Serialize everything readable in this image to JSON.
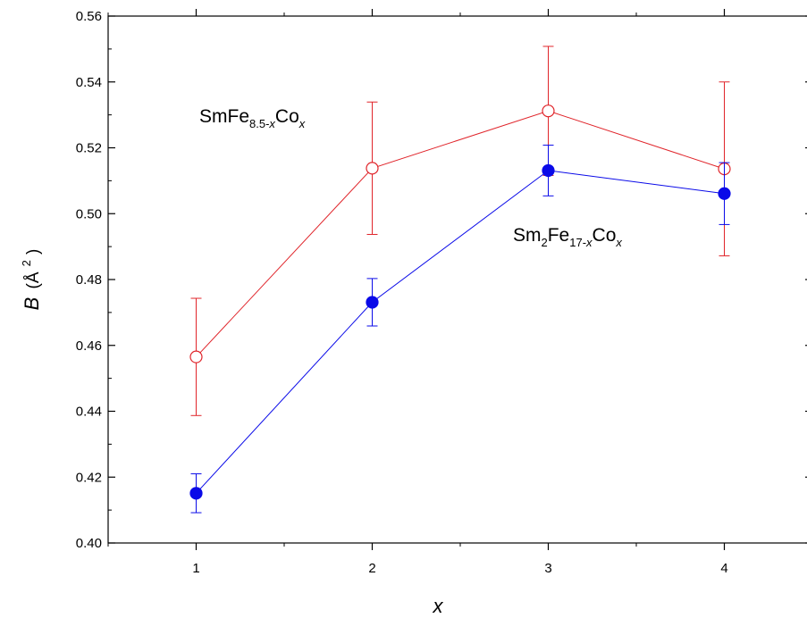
{
  "chart_data": {
    "type": "scatter",
    "xlabel": "x",
    "ylabel": {
      "main": "B",
      "unit": "(Å",
      "sup": "2",
      "close": ")"
    },
    "xlim": [
      0.5,
      4.5
    ],
    "ylim": [
      0.4,
      0.56
    ],
    "x_ticks": [
      1,
      2,
      3,
      4
    ],
    "y_ticks": [
      0.4,
      0.42,
      0.44,
      0.46,
      0.48,
      0.5,
      0.52,
      0.54,
      0.56
    ],
    "grid": false,
    "series": [
      {
        "color": "#e0242a",
        "marker": "open-circle",
        "x": [
          1,
          2,
          3,
          4
        ],
        "y": [
          0.4565,
          0.5138,
          0.5312,
          0.5136
        ],
        "error": [
          0.0178,
          0.0201,
          0.0196,
          0.0264
        ]
      },
      {
        "color": "#0a0ae8",
        "marker": "filled-circle",
        "x": [
          1,
          2,
          3,
          4
        ],
        "y": [
          0.4151,
          0.4731,
          0.5131,
          0.5061
        ],
        "error": [
          0.0059,
          0.0072,
          0.0077,
          0.0094
        ]
      }
    ],
    "annotations": [
      {
        "parts": [
          {
            "t": "SmFe",
            "k": "n"
          },
          {
            "t": "8.5-",
            "k": "sub"
          },
          {
            "t": "x",
            "k": "sub-i"
          },
          {
            "t": "Co",
            "k": "n"
          },
          {
            "t": "x",
            "k": "sub-i"
          }
        ]
      },
      {
        "parts": [
          {
            "t": "Sm",
            "k": "n"
          },
          {
            "t": "2",
            "k": "sub"
          },
          {
            "t": "Fe",
            "k": "n"
          },
          {
            "t": "17-",
            "k": "sub"
          },
          {
            "t": "x",
            "k": "sub-i"
          },
          {
            "t": "Co",
            "k": "n"
          },
          {
            "t": "x",
            "k": "sub-i"
          }
        ]
      }
    ]
  }
}
